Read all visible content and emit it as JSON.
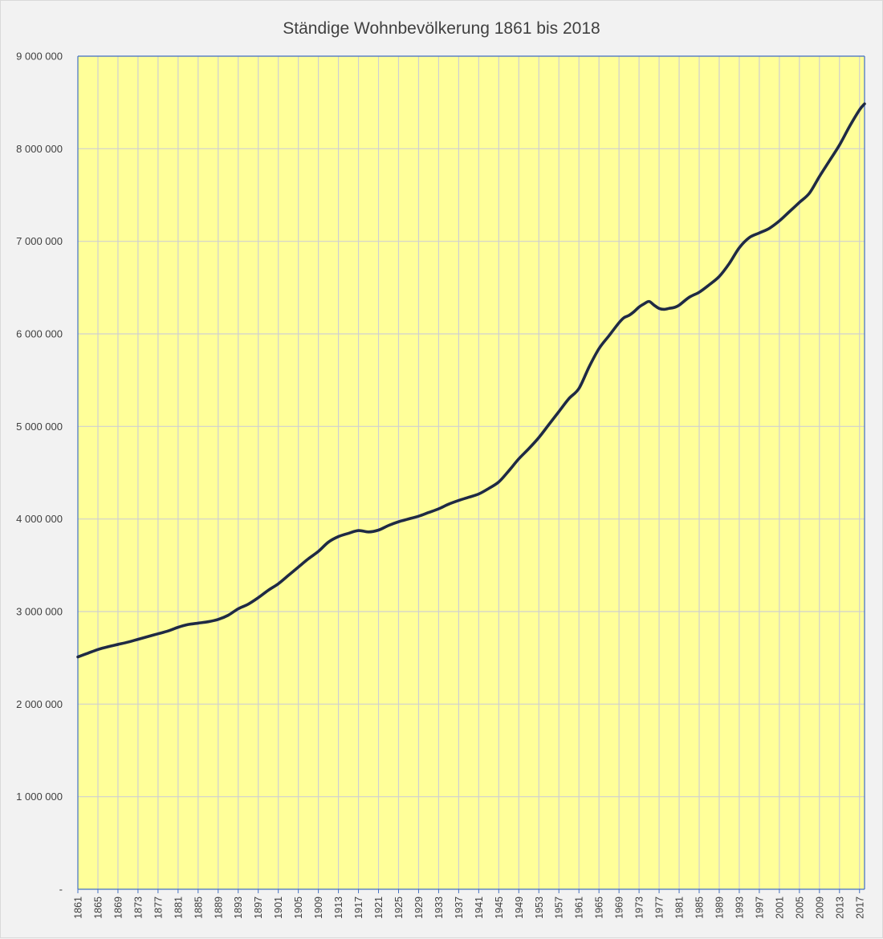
{
  "chart_data": {
    "type": "line",
    "title": "Ständige Wohnbevölkerung 1861 bis 2018",
    "xlabel": "",
    "ylabel": "",
    "xlim": [
      1861,
      2018
    ],
    "ylim": [
      0,
      9000000
    ],
    "y_ticks": [
      {
        "value": 0,
        "label": "-"
      },
      {
        "value": 1000000,
        "label": "1 000 000"
      },
      {
        "value": 2000000,
        "label": "2 000 000"
      },
      {
        "value": 3000000,
        "label": "3 000 000"
      },
      {
        "value": 4000000,
        "label": "4 000 000"
      },
      {
        "value": 5000000,
        "label": "5 000 000"
      },
      {
        "value": 6000000,
        "label": "6 000 000"
      },
      {
        "value": 7000000,
        "label": "7 000 000"
      },
      {
        "value": 8000000,
        "label": "8 000 000"
      },
      {
        "value": 9000000,
        "label": "9 000 000"
      }
    ],
    "x_tick_labels": [
      "1861",
      "1865",
      "1869",
      "1873",
      "1877",
      "1881",
      "1885",
      "1889",
      "1893",
      "1897",
      "1901",
      "1905",
      "1909",
      "1913",
      "1917",
      "1921",
      "1925",
      "1929",
      "1933",
      "1937",
      "1941",
      "1945",
      "1949",
      "1953",
      "1957",
      "1961",
      "1965",
      "1969",
      "1973",
      "1977",
      "1981",
      "1985",
      "1989",
      "1993",
      "1997",
      "2001",
      "2005",
      "2009",
      "2013",
      "2017"
    ],
    "grid": true,
    "legend": "none",
    "colors": {
      "plot_background": "#ffff99",
      "line": "#1f2a44",
      "grid": "#d0d0d0",
      "axis": "#4472c4",
      "frame": "#f2f2f2"
    },
    "series": [
      {
        "x": [
          1861,
          1863,
          1865,
          1867,
          1869,
          1871,
          1873,
          1875,
          1877,
          1879,
          1881,
          1883,
          1885,
          1887,
          1889,
          1891,
          1893,
          1895,
          1897,
          1899,
          1901,
          1903,
          1905,
          1907,
          1909,
          1911,
          1913,
          1915,
          1917,
          1919,
          1921,
          1923,
          1925,
          1927,
          1929,
          1931,
          1933,
          1935,
          1937,
          1939,
          1941,
          1943,
          1945,
          1947,
          1949,
          1951,
          1953,
          1955,
          1957,
          1959,
          1961,
          1963,
          1965,
          1967,
          1969,
          1970,
          1971,
          1972,
          1973,
          1974,
          1975,
          1976,
          1977,
          1978,
          1979,
          1980,
          1981,
          1983,
          1985,
          1987,
          1989,
          1991,
          1993,
          1995,
          1997,
          1999,
          2001,
          2003,
          2005,
          2007,
          2009,
          2011,
          2013,
          2015,
          2017,
          2018
        ],
        "values": [
          2510000,
          2550000,
          2590000,
          2620000,
          2645000,
          2670000,
          2700000,
          2730000,
          2760000,
          2790000,
          2830000,
          2860000,
          2875000,
          2890000,
          2915000,
          2960000,
          3030000,
          3080000,
          3150000,
          3230000,
          3300000,
          3390000,
          3480000,
          3570000,
          3650000,
          3750000,
          3810000,
          3845000,
          3875000,
          3860000,
          3880000,
          3930000,
          3970000,
          4000000,
          4030000,
          4070000,
          4110000,
          4160000,
          4200000,
          4235000,
          4270000,
          4330000,
          4400000,
          4520000,
          4650000,
          4760000,
          4880000,
          5020000,
          5160000,
          5300000,
          5410000,
          5640000,
          5840000,
          5980000,
          6120000,
          6175000,
          6200000,
          6240000,
          6290000,
          6325000,
          6350000,
          6310000,
          6275000,
          6265000,
          6275000,
          6285000,
          6310000,
          6395000,
          6450000,
          6530000,
          6620000,
          6760000,
          6930000,
          7040000,
          7090000,
          7140000,
          7220000,
          7320000,
          7420000,
          7520000,
          7700000,
          7870000,
          8040000,
          8240000,
          8420000,
          8485000
        ]
      }
    ]
  }
}
